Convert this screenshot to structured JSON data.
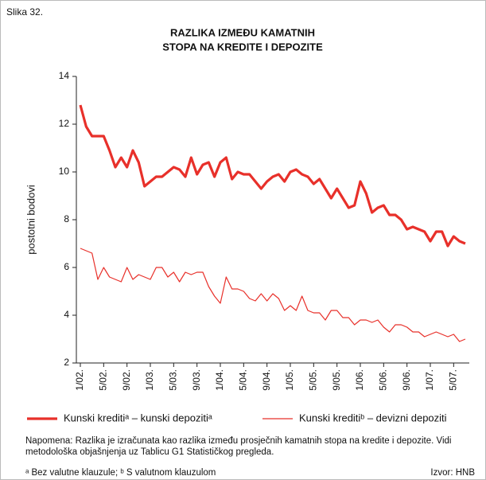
{
  "figure_label": "Slika 32.",
  "chart_data": {
    "type": "line",
    "title": [
      "RAZLIKA IZMEĐU KAMATNIH",
      "STOPA NA KREDITE I DEPOZITE"
    ],
    "ylabel": "postotni bodovi",
    "ylim": [
      2,
      14
    ],
    "yticks": [
      2,
      4,
      6,
      8,
      10,
      12,
      14
    ],
    "categories": [
      "1/02.",
      null,
      null,
      null,
      "5/02.",
      null,
      null,
      null,
      "9/02.",
      null,
      null,
      null,
      "1/03.",
      null,
      null,
      null,
      "5/03.",
      null,
      null,
      null,
      "9/03.",
      null,
      null,
      null,
      "1/04.",
      null,
      null,
      null,
      "5/04.",
      null,
      null,
      null,
      "9/04.",
      null,
      null,
      null,
      "1/05.",
      null,
      null,
      null,
      "5/05.",
      null,
      null,
      null,
      "9/05.",
      null,
      null,
      null,
      "1/06.",
      null,
      null,
      null,
      "5/06.",
      null,
      null,
      null,
      "9/06.",
      null,
      null,
      null,
      "1/07.",
      null,
      null,
      null,
      "5/07.",
      null,
      null
    ],
    "series": [
      {
        "name": "Kunski kreditiᵃ – kunski depozitiᵃ",
        "color": "#e8302a",
        "width": 3.2,
        "values": [
          12.8,
          11.9,
          11.5,
          11.5,
          11.5,
          10.9,
          10.2,
          10.6,
          10.2,
          10.9,
          10.4,
          9.4,
          9.6,
          9.8,
          9.8,
          10.0,
          10.2,
          10.1,
          9.8,
          10.6,
          9.9,
          10.3,
          10.4,
          9.8,
          10.4,
          10.6,
          9.7,
          10.0,
          9.9,
          9.9,
          9.6,
          9.3,
          9.6,
          9.8,
          9.9,
          9.6,
          10.0,
          10.1,
          9.9,
          9.8,
          9.5,
          9.7,
          9.3,
          8.9,
          9.3,
          8.9,
          8.5,
          8.6,
          9.6,
          9.1,
          8.3,
          8.5,
          8.6,
          8.2,
          8.2,
          8.0,
          7.6,
          7.7,
          7.6,
          7.5,
          7.1,
          7.5,
          7.5,
          6.9,
          7.3,
          7.1,
          7.0
        ]
      },
      {
        "name": "Kunski kreditiᵇ – devizni depoziti",
        "color": "#e8302a",
        "width": 1.2,
        "values": [
          6.8,
          6.7,
          6.6,
          5.5,
          6.0,
          5.6,
          5.5,
          5.4,
          6.0,
          5.5,
          5.7,
          5.6,
          5.5,
          6.0,
          6.0,
          5.6,
          5.8,
          5.4,
          5.8,
          5.7,
          5.8,
          5.8,
          5.2,
          4.8,
          4.5,
          5.6,
          5.1,
          5.1,
          5.0,
          4.7,
          4.6,
          4.9,
          4.6,
          4.9,
          4.7,
          4.2,
          4.4,
          4.2,
          4.8,
          4.2,
          4.1,
          4.1,
          3.8,
          4.2,
          4.2,
          3.9,
          3.9,
          3.6,
          3.8,
          3.8,
          3.7,
          3.8,
          3.5,
          3.3,
          3.6,
          3.6,
          3.5,
          3.3,
          3.3,
          3.1,
          3.2,
          3.3,
          3.2,
          3.1,
          3.2,
          2.9,
          3.0
        ]
      }
    ]
  },
  "note": "Napomena: Razlika je izračunata kao razlika između prosječnih kamatnih stopa na kredite i depozite. Vidi metodološka objašnjenja uz Tablicu G1 Statističkog pregleda.",
  "footnote": "ᵃ Bez valutne klauzule; ᵇ S valutnom klauzulom",
  "source": "Izvor: HNB"
}
